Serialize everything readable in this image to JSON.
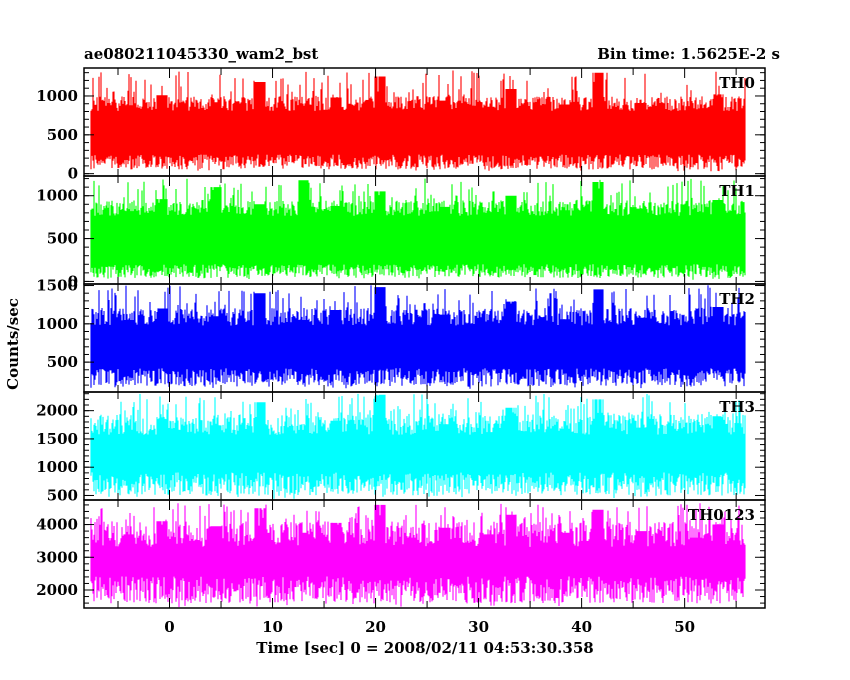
{
  "chart_data": {
    "type": "line",
    "title_left": "ae080211045330_wam2_bst",
    "title_right": "Bin time: 1.5625E-2 s",
    "xlabel": "Time [sec] 0 = 2008/02/11 04:53:30.358",
    "ylabel": "Counts/sec",
    "xlim": [
      -8.3,
      57.8
    ],
    "x_range_data": [
      -7.6,
      55.9
    ],
    "xticks": [
      0,
      10,
      20,
      30,
      40,
      50
    ],
    "grid": false,
    "panels": [
      {
        "name": "TH0",
        "color": "#ff0000",
        "ylim": [
          -30,
          1360
        ],
        "yticks": [
          0,
          500,
          1000
        ],
        "signal_min": 30,
        "signal_low": 150,
        "signal_high": 950,
        "signal_max": 1330,
        "values": [
          550,
          720,
          410,
          880,
          600,
          330,
          1010,
          640,
          470,
          790,
          560,
          920,
          380,
          700,
          610,
          1180,
          500,
          760,
          430,
          870,
          650,
          540,
          980,
          450,
          720,
          590,
          1250,
          490,
          680,
          820,
          560,
          390,
          940,
          610,
          700,
          520,
          860,
          470,
          1090,
          640,
          560,
          730,
          410,
          890,
          600,
          760,
          1300,
          520,
          670,
          450,
          910,
          580,
          720,
          630,
          480,
          830,
          560,
          1020,
          600,
          700
        ]
      },
      {
        "name": "TH1",
        "color": "#00ff00",
        "ylim": [
          -30,
          1230
        ],
        "yticks": [
          0,
          500,
          1000
        ],
        "signal_min": 20,
        "signal_low": 120,
        "signal_high": 900,
        "signal_max": 1200,
        "values": [
          480,
          650,
          380,
          820,
          560,
          300,
          960,
          600,
          440,
          740,
          520,
          1100,
          360,
          660,
          580,
          900,
          470,
          710,
          400,
          1180,
          610,
          500,
          880,
          420,
          680,
          550,
          1050,
          460,
          640,
          770,
          520,
          370,
          870,
          580,
          660,
          490,
          800,
          440,
          1000,
          600,
          520,
          690,
          390,
          830,
          560,
          710,
          1160,
          490,
          630,
          420,
          850,
          550,
          680,
          590,
          450,
          780,
          530,
          950,
          560,
          650
        ]
      },
      {
        "name": "TH2",
        "color": "#0000ff",
        "ylim": [
          110,
          1520
        ],
        "yticks": [
          500,
          1000,
          1500
        ],
        "signal_min": 150,
        "signal_low": 300,
        "signal_high": 1150,
        "signal_max": 1510,
        "values": [
          720,
          880,
          560,
          1050,
          760,
          480,
          1200,
          800,
          620,
          950,
          710,
          1100,
          540,
          860,
          770,
          1400,
          660,
          920,
          590,
          1050,
          800,
          690,
          1180,
          610,
          870,
          740,
          1480,
          650,
          830,
          990,
          710,
          550,
          1120,
          760,
          850,
          680,
          1030,
          620,
          1290,
          790,
          700,
          880,
          570,
          1060,
          750,
          910,
          1450,
          680,
          820,
          600,
          1080,
          730,
          870,
          780,
          640,
          1000,
          710,
          1220,
          760,
          850
        ]
      },
      {
        "name": "TH3",
        "color": "#00ffff",
        "ylim": [
          420,
          2330
        ],
        "yticks": [
          500,
          1000,
          1500,
          2000
        ],
        "signal_min": 440,
        "signal_low": 700,
        "signal_high": 1850,
        "signal_max": 2300,
        "values": [
          1150,
          1380,
          920,
          1620,
          1250,
          840,
          1850,
          1300,
          1020,
          1500,
          1180,
          1740,
          900,
          1400,
          1260,
          2150,
          1080,
          1480,
          970,
          1660,
          1310,
          1120,
          1820,
          1010,
          1420,
          1210,
          2280,
          1060,
          1350,
          1560,
          1170,
          930,
          1760,
          1250,
          1380,
          1100,
          1620,
          1020,
          2050,
          1300,
          1140,
          1430,
          940,
          1680,
          1220,
          1470,
          2200,
          1110,
          1330,
          990,
          1700,
          1190,
          1400,
          1270,
          1040,
          1580,
          1160,
          1900,
          1240,
          1370
        ]
      },
      {
        "name": "TH0123",
        "color": "#ff00ff",
        "ylim": [
          1450,
          4750
        ],
        "yticks": [
          2000,
          3000,
          4000
        ],
        "signal_min": 1480,
        "signal_low": 2000,
        "signal_high": 3900,
        "signal_max": 4650,
        "values": [
          2900,
          3300,
          2500,
          3700,
          3050,
          2300,
          4100,
          3150,
          2700,
          3500,
          2950,
          3950,
          2450,
          3350,
          3100,
          4500,
          2800,
          3450,
          2600,
          3750,
          3200,
          2900,
          4050,
          2650,
          3400,
          3000,
          4600,
          2750,
          3250,
          3600,
          2950,
          2450,
          3900,
          3100,
          3300,
          2800,
          3700,
          2650,
          4300,
          3150,
          2900,
          3450,
          2500,
          3750,
          3050,
          3500,
          4450,
          2850,
          3250,
          2600,
          3800,
          3000,
          3400,
          3150,
          2700,
          3600,
          2950,
          4000,
          3100,
          3300
        ]
      }
    ]
  }
}
